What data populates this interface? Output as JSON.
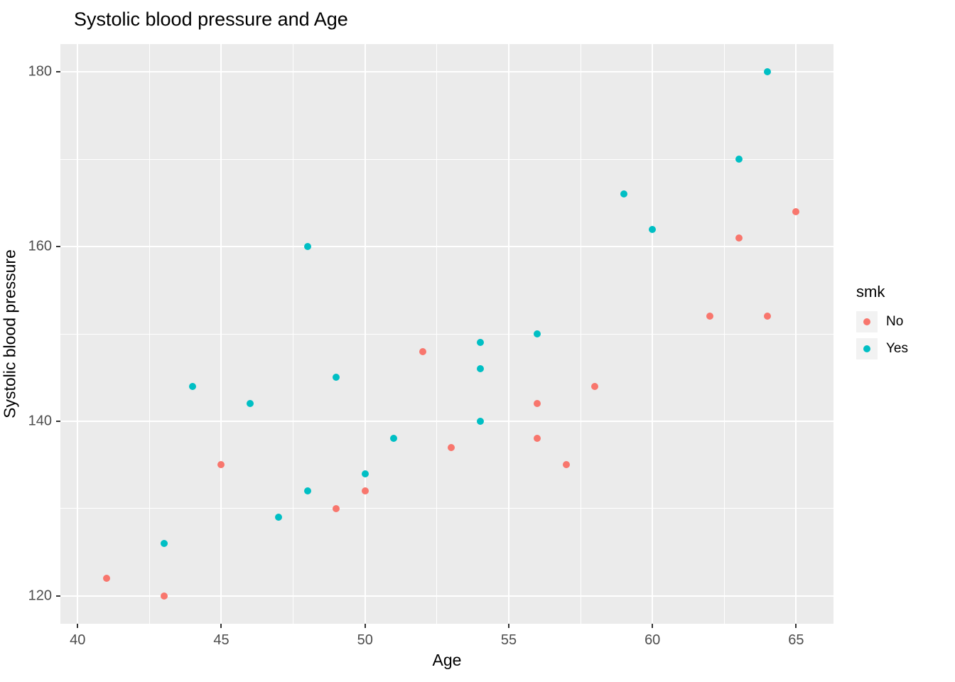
{
  "chart_data": {
    "type": "scatter",
    "title": "Systolic blood pressure and Age",
    "xlabel": "Age",
    "ylabel": "Systolic blood pressure",
    "xlim": [
      39.4,
      66.3
    ],
    "ylim": [
      116.8,
      183.2
    ],
    "x_ticks": [
      40,
      45,
      50,
      55,
      60,
      65
    ],
    "y_ticks": [
      120,
      140,
      160,
      180
    ],
    "x_minor": [
      42.5,
      47.5,
      52.5,
      57.5,
      62.5
    ],
    "y_minor": [
      130,
      150,
      170
    ],
    "grid": true,
    "panel_background": "#EBEBEB",
    "legend_position": "right",
    "legend": {
      "title": "smk",
      "entries": [
        {
          "label": "No",
          "color": "#F8766D"
        },
        {
          "label": "Yes",
          "color": "#00BFC4"
        }
      ]
    },
    "series": [
      {
        "name": "No",
        "color": "#F8766D",
        "points": [
          [
            41,
            122
          ],
          [
            43,
            120
          ],
          [
            45,
            135
          ],
          [
            49,
            130
          ],
          [
            50,
            132
          ],
          [
            52,
            148
          ],
          [
            53,
            137
          ],
          [
            56,
            138
          ],
          [
            56,
            142
          ],
          [
            57,
            135
          ],
          [
            58,
            144
          ],
          [
            62,
            152
          ],
          [
            63,
            161
          ],
          [
            64,
            152
          ],
          [
            65,
            164
          ]
        ]
      },
      {
        "name": "Yes",
        "color": "#00BFC4",
        "points": [
          [
            43,
            126
          ],
          [
            44,
            144
          ],
          [
            46,
            142
          ],
          [
            47,
            129
          ],
          [
            48,
            132
          ],
          [
            48,
            160
          ],
          [
            49,
            145
          ],
          [
            50,
            134
          ],
          [
            51,
            138
          ],
          [
            54,
            140
          ],
          [
            54,
            146
          ],
          [
            54,
            149
          ],
          [
            56,
            150
          ],
          [
            59,
            166
          ],
          [
            60,
            162
          ],
          [
            63,
            170
          ],
          [
            64,
            180
          ]
        ]
      }
    ]
  }
}
